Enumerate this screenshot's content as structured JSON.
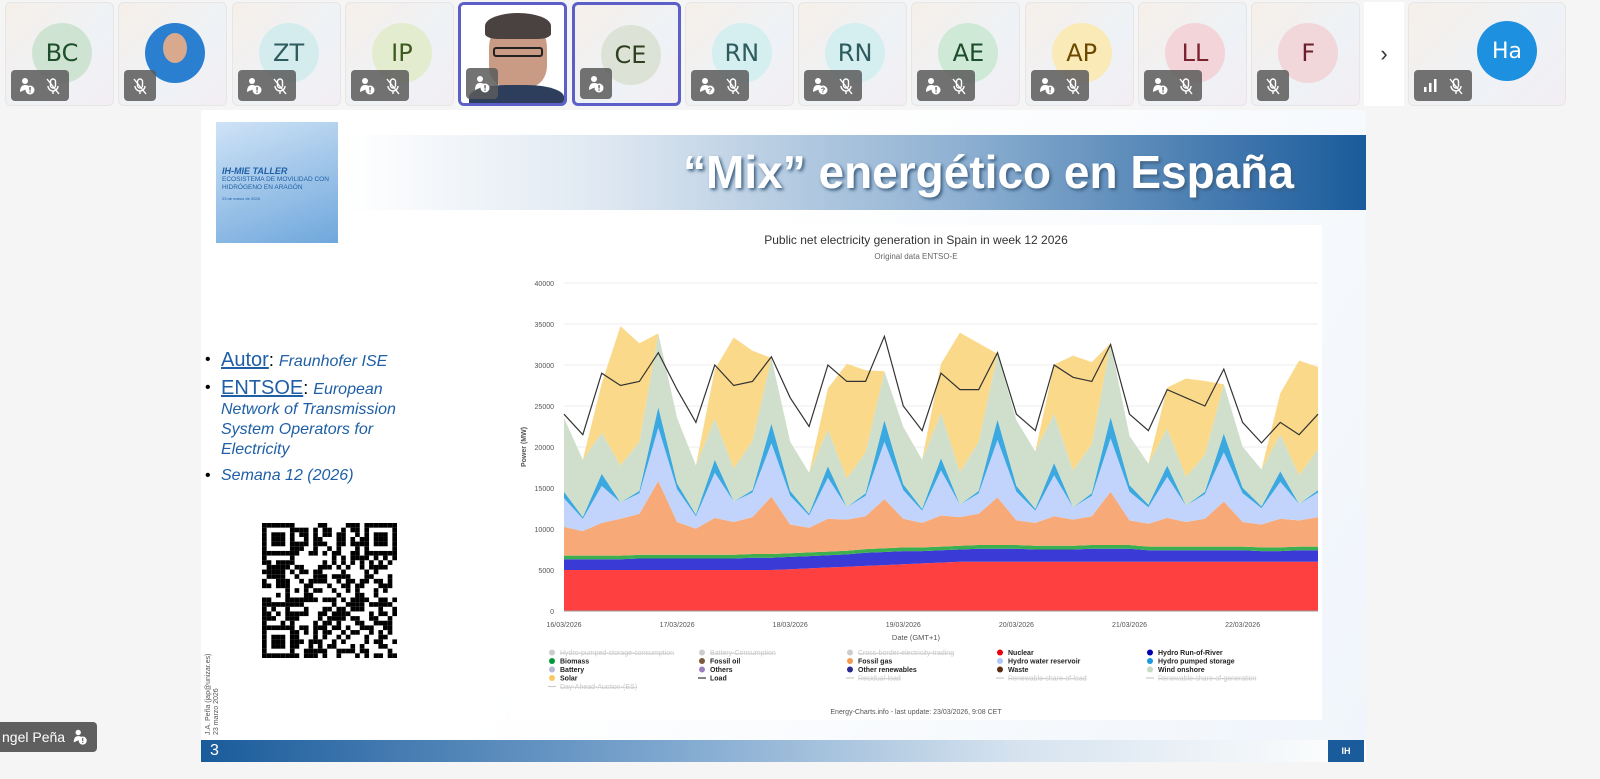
{
  "participants": [
    {
      "initials": "BC",
      "bg": "#cfe3d3",
      "fg": "#1e4d2b",
      "icons": [
        "raise-hand-info",
        "mic-off"
      ]
    },
    {
      "initials": "",
      "photo": true,
      "bg": "#2a7fd0",
      "icons": [
        "mic-off"
      ]
    },
    {
      "initials": "ZT",
      "bg": "#d4ecee",
      "fg": "#2d5b5e",
      "icons": [
        "raise-hand-info",
        "mic-off"
      ]
    },
    {
      "initials": "IP",
      "bg": "#e4ecd0",
      "fg": "#3d5a1f",
      "icons": [
        "raise-hand-info",
        "mic-off"
      ]
    },
    {
      "initials": "",
      "video": true,
      "selected": true,
      "icons": [
        "raise-hand-info"
      ]
    },
    {
      "initials": "CE",
      "bg": "#dce3d6",
      "fg": "#2f3f22",
      "selected": true,
      "icons": [
        "raise-hand-info"
      ]
    },
    {
      "initials": "RN",
      "bg": "#d5eef0",
      "fg": "#2d5b5e",
      "icons": [
        "raise-hand-question",
        "mic-off"
      ]
    },
    {
      "initials": "RN",
      "bg": "#d5eef0",
      "fg": "#2d5b5e",
      "icons": [
        "raise-hand-question",
        "mic-off"
      ]
    },
    {
      "initials": "AE",
      "bg": "#cfe9d7",
      "fg": "#1e4d2b",
      "icons": [
        "raise-hand-info",
        "mic-off"
      ]
    },
    {
      "initials": "AP",
      "bg": "#faeab8",
      "fg": "#6b4a00",
      "icons": [
        "raise-hand-info",
        "mic-off"
      ]
    },
    {
      "initials": "LL",
      "bg": "#f3d4d8",
      "fg": "#7a2230",
      "icons": [
        "raise-hand-info",
        "mic-off"
      ]
    },
    {
      "initials": "F",
      "bg": "#f1d6da",
      "fg": "#6a1f2a",
      "icons": [
        "mic-off"
      ]
    }
  ],
  "next_arrow": "›",
  "last_tile": {
    "initials": "Ha",
    "icons": [
      "signal-bars",
      "mic-off"
    ]
  },
  "speaker_name": "ngel Peña",
  "slide": {
    "title": "“Mix” energético en España",
    "poster": {
      "line1": "IH-MIE TALLER",
      "line2": "ECOSISTEMA DE MOVILIDAD CON HIDRÓGENO EN ARAGÓN",
      "line3": "23 de marzo de 2026"
    },
    "bullets": [
      {
        "key": "Autor",
        "sep": ": ",
        "text": "Fraunhofer ISE"
      },
      {
        "key": "ENTSOE",
        "sep": ": ",
        "text": "European Network of Transmission System Operators for Electricity"
      },
      {
        "key": "",
        "sep": "",
        "text": "Semana 12 (2026)"
      }
    ],
    "side_note": [
      "J.A. Peña (jap@unizar.es)",
      "23 marzo 2026"
    ],
    "page_number": "3",
    "logo": "IH"
  },
  "chart_data": {
    "type": "area",
    "title": "Public net electricity generation in Spain in week 12 2026",
    "subtitle": "Original data ENTSO-E",
    "xlabel": "Date (GMT+1)",
    "ylabel": "Power (MW)",
    "ylim": [
      0,
      40000
    ],
    "yticks": [
      0,
      5000,
      10000,
      15000,
      20000,
      25000,
      30000,
      35000,
      40000
    ],
    "xlim_hours": [
      0,
      160
    ],
    "xticks": [
      {
        "h": 0,
        "label": "16/03/2026"
      },
      {
        "h": 24,
        "label": "17/03/2026"
      },
      {
        "h": 48,
        "label": "18/03/2026"
      },
      {
        "h": 72,
        "label": "19/03/2026"
      },
      {
        "h": 96,
        "label": "20/03/2026"
      },
      {
        "h": 120,
        "label": "21/03/2026"
      },
      {
        "h": 144,
        "label": "22/03/2026"
      }
    ],
    "step_hours": 4,
    "series": [
      {
        "name": "Nuclear",
        "color": "#ff4040",
        "values": [
          5000,
          5000,
          5000,
          5000,
          5000,
          5000,
          5000,
          5000,
          5000,
          5000,
          5000,
          5000,
          5100,
          5200,
          5300,
          5400,
          5500,
          5600,
          5700,
          5800,
          5900,
          6000,
          6000,
          6000,
          6000,
          6000,
          6000,
          6000,
          6000,
          6000,
          6000,
          6000,
          6000,
          6000,
          6000,
          6000,
          6000,
          6000,
          6000,
          6000,
          6000
        ]
      },
      {
        "name": "Hydro Run-of-River",
        "color": "#3a3ad6",
        "values": [
          1300,
          1300,
          1300,
          1300,
          1400,
          1400,
          1400,
          1400,
          1400,
          1400,
          1500,
          1500,
          1500,
          1500,
          1500,
          1500,
          1600,
          1600,
          1600,
          1500,
          1500,
          1500,
          1600,
          1600,
          1600,
          1500,
          1500,
          1500,
          1600,
          1600,
          1600,
          1400,
          1400,
          1400,
          1400,
          1400,
          1400,
          1300,
          1300,
          1400,
          1400
        ]
      },
      {
        "name": "Biomass",
        "color": "#3cb050",
        "values": [
          450,
          450,
          450,
          450,
          450,
          450,
          450,
          450,
          450,
          450,
          450,
          450,
          450,
          450,
          450,
          450,
          450,
          450,
          450,
          450,
          450,
          450,
          450,
          450,
          450,
          450,
          450,
          450,
          450,
          450,
          450,
          450,
          450,
          450,
          450,
          450,
          450,
          450,
          450,
          450,
          450
        ]
      },
      {
        "name": "Fossil gas",
        "color": "#f7aa78",
        "values": [
          3500,
          3000,
          4000,
          4500,
          5000,
          9000,
          4000,
          3200,
          4500,
          4000,
          4500,
          7000,
          3500,
          3000,
          4000,
          3800,
          4000,
          6000,
          3500,
          3000,
          3800,
          3500,
          3800,
          5800,
          3000,
          2800,
          3600,
          3200,
          3500,
          6500,
          3000,
          2800,
          3500,
          3000,
          3400,
          5500,
          3000,
          2800,
          3500,
          3200,
          3600
        ]
      },
      {
        "name": "Hydro water reservoir",
        "color": "#c2d4fb",
        "values": [
          3500,
          1500,
          4500,
          2000,
          2500,
          6500,
          4000,
          1500,
          5500,
          2500,
          3000,
          6500,
          3500,
          1500,
          5000,
          1500,
          2500,
          7000,
          3500,
          1500,
          5500,
          1500,
          2500,
          7000,
          3500,
          1500,
          5000,
          1500,
          2500,
          6500,
          3500,
          2000,
          5000,
          2000,
          3000,
          6000,
          3500,
          2000,
          4500,
          2000,
          3000
        ]
      },
      {
        "name": "Hydro pumped storage",
        "color": "#3ba8e0",
        "values": [
          800,
          200,
          1500,
          0,
          300,
          2500,
          700,
          200,
          1600,
          0,
          300,
          2400,
          600,
          200,
          1400,
          0,
          300,
          2600,
          700,
          200,
          1500,
          0,
          300,
          2500,
          700,
          200,
          1500,
          0,
          300,
          2600,
          800,
          300,
          1400,
          0,
          300,
          2300,
          700,
          200,
          1300,
          0,
          300
        ]
      },
      {
        "name": "Wind onshore",
        "color": "#cfdfcc",
        "values": [
          9000,
          7000,
          5000,
          4500,
          6000,
          9000,
          8000,
          6000,
          5000,
          4000,
          6000,
          8000,
          6000,
          5000,
          4500,
          3500,
          5000,
          6000,
          7000,
          6000,
          5500,
          4000,
          6000,
          8000,
          8000,
          7000,
          6000,
          4500,
          6000,
          9000,
          6000,
          5000,
          4500,
          3500,
          4500,
          6000,
          5000,
          4500,
          4500,
          3500,
          5000
        ]
      },
      {
        "name": "Solar",
        "color": "#fbd98a",
        "values": [
          0,
          0,
          6000,
          17000,
          12000,
          0,
          0,
          0,
          6000,
          16000,
          11000,
          0,
          0,
          0,
          5000,
          14000,
          10000,
          0,
          0,
          0,
          6000,
          17000,
          12000,
          0,
          0,
          0,
          6000,
          14000,
          10000,
          0,
          0,
          0,
          5000,
          12000,
          9000,
          0,
          0,
          0,
          5000,
          14000,
          10000
        ]
      }
    ],
    "load": {
      "name": "Load",
      "color": "#333333",
      "values": [
        24000,
        21500,
        29000,
        27500,
        28000,
        31500,
        27000,
        23000,
        30000,
        27500,
        28000,
        31000,
        26000,
        22500,
        30000,
        28000,
        28000,
        33500,
        25000,
        22000,
        29000,
        27000,
        27000,
        31500,
        24000,
        22000,
        30000,
        28500,
        28000,
        32500,
        24000,
        22000,
        27000,
        26000,
        25000,
        29500,
        23000,
        20500,
        23000,
        21500,
        24000
      ]
    },
    "legend": [
      {
        "label": "Hydro-pumped-storage-consumption",
        "color": "#cccccc",
        "disabled": true,
        "shape": "dot"
      },
      {
        "label": "Battery-Consumption",
        "color": "#cccccc",
        "disabled": true,
        "shape": "dot"
      },
      {
        "label": "Cross-border-electricity-trading",
        "color": "#cccccc",
        "disabled": true,
        "shape": "dot"
      },
      {
        "label": "Nuclear",
        "color": "#e8000b",
        "shape": "dot"
      },
      {
        "label": "Hydro Run-of-River",
        "color": "#0000b0",
        "shape": "dot"
      },
      {
        "label": "Biomass",
        "color": "#00963c",
        "shape": "dot"
      },
      {
        "label": "Fossil oil",
        "color": "#7a5a3a",
        "shape": "dot"
      },
      {
        "label": "Fossil gas",
        "color": "#f59a50",
        "shape": "dot"
      },
      {
        "label": "Hydro water reservoir",
        "color": "#b0c8f8",
        "shape": "dot"
      },
      {
        "label": "Hydro pumped storage",
        "color": "#1a9ae0",
        "shape": "dot"
      },
      {
        "label": "Battery",
        "color": "#b8b8dc",
        "shape": "dot"
      },
      {
        "label": "Others",
        "color": "#9a80c0",
        "shape": "dot"
      },
      {
        "label": "Other renewables",
        "color": "#2a2a90",
        "shape": "dot"
      },
      {
        "label": "Waste",
        "color": "#5a3010",
        "shape": "dot"
      },
      {
        "label": "Wind onshore",
        "color": "#c4dcc0",
        "shape": "dot"
      },
      {
        "label": "Solar",
        "color": "#fcc864",
        "shape": "dot"
      },
      {
        "label": "Load",
        "color": "#333333",
        "shape": "line"
      },
      {
        "label": "Residual-load",
        "color": "#cccccc",
        "disabled": true,
        "shape": "line"
      },
      {
        "label": "Renewable-share-of-load",
        "color": "#cccccc",
        "disabled": true,
        "shape": "line"
      },
      {
        "label": "Renewable-share-of-generation",
        "color": "#cccccc",
        "disabled": true,
        "shape": "line"
      },
      {
        "label": "Day-Ahead-Auction-(ES)",
        "color": "#cccccc",
        "disabled": true,
        "shape": "line"
      }
    ],
    "credit": "Energy-Charts.info - last update: 23/03/2026, 9:08 CET"
  }
}
